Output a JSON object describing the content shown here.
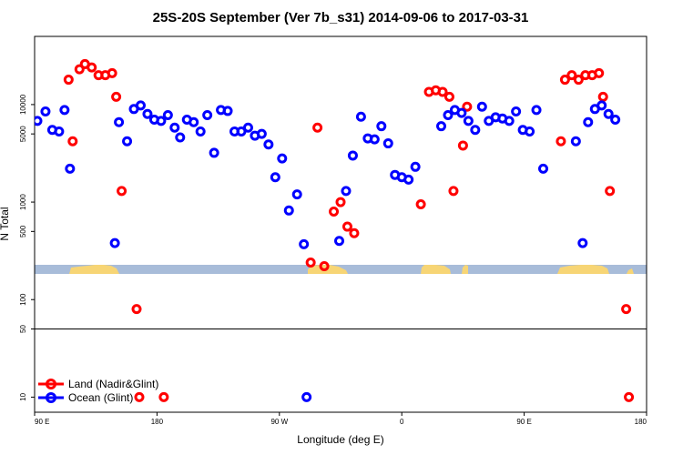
{
  "chart_data": {
    "type": "scatter",
    "title": "25S-20S September (Ver 7b_s31)   2014-09-06 to 2017-03-31",
    "xlabel": "Longitude (deg E)",
    "ylabel": "N Total",
    "x_scale": "linear",
    "y_scale": "log",
    "xlim": [
      90,
      540
    ],
    "ylim": [
      7,
      50000
    ],
    "x_ticks": [
      {
        "value": 90,
        "label": "90 E"
      },
      {
        "value": 180,
        "label": "180"
      },
      {
        "value": 270,
        "label": "90 W"
      },
      {
        "value": 360,
        "label": "0"
      },
      {
        "value": 450,
        "label": "90 E"
      },
      {
        "value": 540,
        "label": "180"
      }
    ],
    "y_ticks": [
      {
        "value": 10,
        "label": "10"
      },
      {
        "value": 50,
        "label": "50"
      },
      {
        "value": 100,
        "label": "100"
      },
      {
        "value": 500,
        "label": "500"
      },
      {
        "value": 1000,
        "label": "1000"
      },
      {
        "value": 5000,
        "label": "5000"
      },
      {
        "value": 10000,
        "label": "10000"
      }
    ],
    "reference_line": 50,
    "legend_position": "bottom-left",
    "series": [
      {
        "name": "Land (Nadir&Glint)",
        "color": "#ff0000",
        "points": [
          [
            115,
            18000
          ],
          [
            118,
            4200
          ],
          [
            123,
            23000
          ],
          [
            127,
            26000
          ],
          [
            132,
            24000
          ],
          [
            137,
            20000
          ],
          [
            142,
            20000
          ],
          [
            147,
            21000
          ],
          [
            150,
            12000
          ],
          [
            154,
            1300
          ],
          [
            165,
            80
          ],
          [
            167,
            10
          ],
          [
            185,
            10
          ],
          [
            293,
            240
          ],
          [
            298,
            5800
          ],
          [
            303,
            220
          ],
          [
            310,
            800
          ],
          [
            315,
            1000
          ],
          [
            320,
            560
          ],
          [
            325,
            480
          ],
          [
            374,
            950
          ],
          [
            380,
            13500
          ],
          [
            385,
            14000
          ],
          [
            390,
            13500
          ],
          [
            395,
            12000
          ],
          [
            398,
            1300
          ],
          [
            405,
            3800
          ],
          [
            408,
            9500
          ],
          [
            477,
            4200
          ],
          [
            480,
            18000
          ],
          [
            485,
            20000
          ],
          [
            490,
            18000
          ],
          [
            495,
            20000
          ],
          [
            500,
            20000
          ],
          [
            505,
            21000
          ],
          [
            508,
            12000
          ],
          [
            513,
            1300
          ],
          [
            525,
            80
          ],
          [
            527,
            10
          ]
        ]
      },
      {
        "name": "Ocean (Glint)",
        "color": "#0000ff",
        "points": [
          [
            92,
            6800
          ],
          [
            98,
            8500
          ],
          [
            103,
            5500
          ],
          [
            108,
            5300
          ],
          [
            112,
            8800
          ],
          [
            116,
            2200
          ],
          [
            149,
            380
          ],
          [
            152,
            6600
          ],
          [
            158,
            4200
          ],
          [
            163,
            9000
          ],
          [
            168,
            9800
          ],
          [
            173,
            8000
          ],
          [
            178,
            7000
          ],
          [
            183,
            6800
          ],
          [
            188,
            7800
          ],
          [
            193,
            5800
          ],
          [
            197,
            4600
          ],
          [
            202,
            7000
          ],
          [
            207,
            6600
          ],
          [
            212,
            5300
          ],
          [
            217,
            7800
          ],
          [
            222,
            3200
          ],
          [
            227,
            8800
          ],
          [
            232,
            8600
          ],
          [
            237,
            5300
          ],
          [
            242,
            5300
          ],
          [
            247,
            5800
          ],
          [
            252,
            4800
          ],
          [
            257,
            5000
          ],
          [
            262,
            3900
          ],
          [
            267,
            1800
          ],
          [
            272,
            2800
          ],
          [
            277,
            820
          ],
          [
            283,
            1200
          ],
          [
            288,
            370
          ],
          [
            290,
            10
          ],
          [
            314,
            400
          ],
          [
            319,
            1300
          ],
          [
            324,
            3000
          ],
          [
            330,
            7500
          ],
          [
            335,
            4500
          ],
          [
            340,
            4400
          ],
          [
            345,
            6000
          ],
          [
            350,
            4000
          ],
          [
            355,
            1900
          ],
          [
            360,
            1800
          ],
          [
            365,
            1700
          ],
          [
            370,
            2300
          ],
          [
            389,
            6000
          ],
          [
            394,
            7800
          ],
          [
            399,
            8800
          ],
          [
            404,
            8200
          ],
          [
            409,
            6800
          ],
          [
            414,
            5500
          ],
          [
            419,
            9500
          ],
          [
            424,
            6800
          ],
          [
            429,
            7400
          ],
          [
            434,
            7200
          ],
          [
            439,
            6800
          ],
          [
            444,
            8500
          ],
          [
            449,
            5500
          ],
          [
            454,
            5300
          ],
          [
            459,
            8800
          ],
          [
            464,
            2200
          ],
          [
            488,
            4200
          ],
          [
            493,
            380
          ],
          [
            497,
            6600
          ],
          [
            502,
            9000
          ],
          [
            507,
            9800
          ],
          [
            512,
            8000
          ],
          [
            517,
            7000
          ]
        ]
      }
    ]
  }
}
